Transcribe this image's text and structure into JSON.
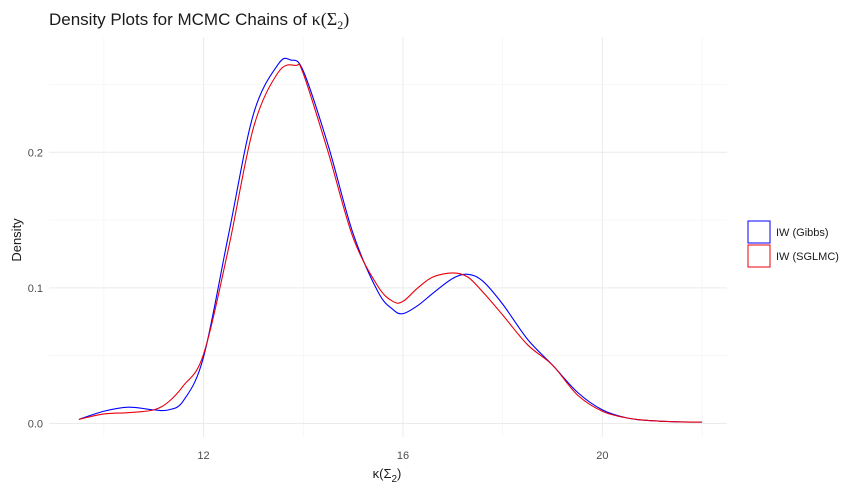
{
  "chart_data": {
    "type": "line",
    "title_prefix": "Density Plots for MCMC Chains of ",
    "title_math": "κ(Σ",
    "title_math_sub": "2",
    "title_math_close": ")",
    "xlabel_math": "κ(Σ",
    "xlabel_math_sub": "2",
    "xlabel_math_close": ")",
    "ylabel": "Density",
    "xlim": [
      8.9,
      22.5
    ],
    "ylim": [
      -0.01,
      0.285
    ],
    "x_ticks": [
      12,
      16,
      20
    ],
    "x_tick_labels": [
      "12",
      "16",
      "20"
    ],
    "y_ticks": [
      0.0,
      0.1,
      0.2
    ],
    "y_tick_labels": [
      "0.0",
      "0.1",
      "0.2"
    ],
    "grid": true,
    "legend_position": "right",
    "series": [
      {
        "name": "IW (Gibbs)",
        "color": "#0000ff",
        "x": [
          9.5,
          10.0,
          10.5,
          11.0,
          11.3,
          11.6,
          12.0,
          12.5,
          13.0,
          13.5,
          13.75,
          14.0,
          14.5,
          15.0,
          15.5,
          15.8,
          16.0,
          16.3,
          16.6,
          17.0,
          17.3,
          17.6,
          18.0,
          18.5,
          19.0,
          19.5,
          20.0,
          20.5,
          21.0,
          21.5,
          22.0
        ],
        "y": [
          0.003,
          0.009,
          0.012,
          0.01,
          0.01,
          0.017,
          0.049,
          0.139,
          0.228,
          0.265,
          0.268,
          0.26,
          0.205,
          0.14,
          0.097,
          0.084,
          0.081,
          0.087,
          0.096,
          0.107,
          0.11,
          0.105,
          0.088,
          0.062,
          0.043,
          0.023,
          0.01,
          0.004,
          0.002,
          0.0012,
          0.001
        ]
      },
      {
        "name": "IW (SGLMC)",
        "color": "#e8000b",
        "x": [
          9.5,
          10.0,
          10.5,
          11.0,
          11.3,
          11.6,
          12.0,
          12.5,
          13.0,
          13.5,
          13.85,
          14.0,
          14.5,
          15.0,
          15.5,
          15.8,
          16.0,
          16.3,
          16.6,
          17.0,
          17.3,
          17.6,
          18.0,
          18.5,
          19.0,
          19.5,
          20.0,
          20.5,
          21.0,
          21.5,
          22.0
        ],
        "y": [
          0.003,
          0.007,
          0.008,
          0.01,
          0.016,
          0.028,
          0.051,
          0.129,
          0.218,
          0.259,
          0.264,
          0.258,
          0.2,
          0.137,
          0.101,
          0.09,
          0.09,
          0.1,
          0.108,
          0.111,
          0.108,
          0.097,
          0.08,
          0.058,
          0.043,
          0.021,
          0.009,
          0.004,
          0.002,
          0.0012,
          0.001
        ]
      }
    ]
  }
}
